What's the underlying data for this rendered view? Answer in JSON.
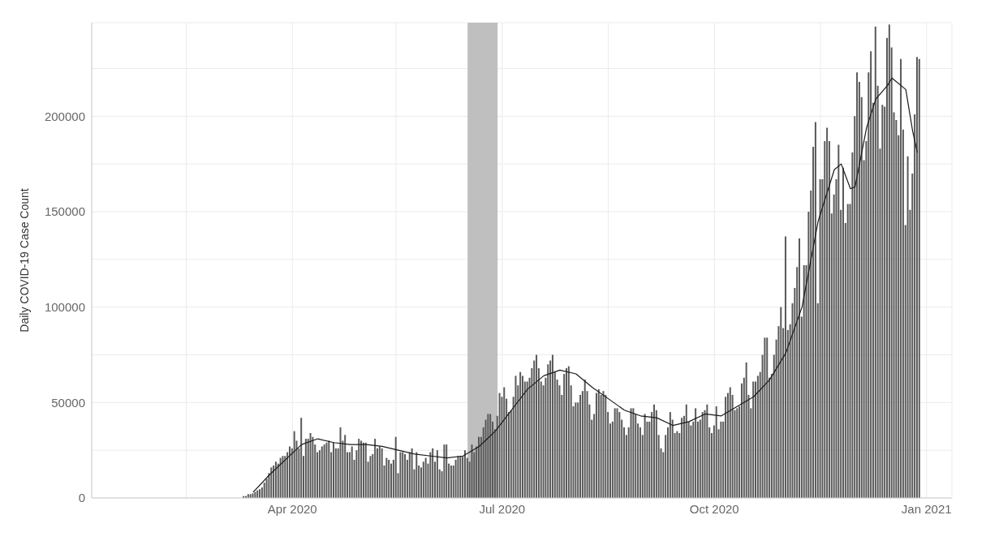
{
  "chart_data": {
    "type": "bar",
    "ylabel": "Daily COVID-19 Case Count",
    "xlim": [
      "2020-01-05",
      "2021-01-12"
    ],
    "xticks": [
      {
        "value": "2020-02-15",
        "label": null
      },
      {
        "value": "2020-04-01",
        "label": "Apr 2020"
      },
      {
        "value": "2020-05-16",
        "label": null
      },
      {
        "value": "2020-07-01",
        "label": "Jul 2020"
      },
      {
        "value": "2020-08-16",
        "label": null
      },
      {
        "value": "2020-10-01",
        "label": "Oct 2020"
      },
      {
        "value": "2020-11-16",
        "label": null
      },
      {
        "value": "2021-01-01",
        "label": "Jan 2021"
      }
    ],
    "ylim": [
      0,
      249000
    ],
    "yticks": [
      0,
      {
        "value": 25000,
        "label": null
      },
      50000,
      {
        "value": 75000,
        "label": null
      },
      100000,
      {
        "value": 125000,
        "label": null
      },
      150000,
      {
        "value": 175000,
        "label": null
      },
      200000,
      {
        "value": 225000,
        "label": null
      }
    ],
    "grid": true,
    "bands": [
      {
        "axis": "x",
        "from": "2020-06-16",
        "to": "2020-06-29",
        "color": "#bfbfbf"
      }
    ],
    "series": [
      {
        "color": "#595959",
        "x": [
          "2020-03-11",
          "2020-03-12",
          "2020-03-13",
          "2020-03-14",
          "2020-03-15",
          "2020-03-16",
          "2020-03-17",
          "2020-03-18",
          "2020-03-19",
          "2020-03-20",
          "2020-03-21",
          "2020-03-22",
          "2020-03-23",
          "2020-03-24",
          "2020-03-25",
          "2020-03-26",
          "2020-03-27",
          "2020-03-28",
          "2020-03-29",
          "2020-03-30",
          "2020-03-31",
          "2020-04-01",
          "2020-04-02",
          "2020-04-03",
          "2020-04-04",
          "2020-04-05",
          "2020-04-06",
          "2020-04-07",
          "2020-04-08",
          "2020-04-09",
          "2020-04-10",
          "2020-04-11",
          "2020-04-12",
          "2020-04-13",
          "2020-04-14",
          "2020-04-15",
          "2020-04-16",
          "2020-04-17",
          "2020-04-18",
          "2020-04-19",
          "2020-04-20",
          "2020-04-21",
          "2020-04-22",
          "2020-04-23",
          "2020-04-24",
          "2020-04-25",
          "2020-04-26",
          "2020-04-27",
          "2020-04-28",
          "2020-04-29",
          "2020-04-30",
          "2020-05-01",
          "2020-05-02",
          "2020-05-03",
          "2020-05-04",
          "2020-05-05",
          "2020-05-06",
          "2020-05-07",
          "2020-05-08",
          "2020-05-09",
          "2020-05-10",
          "2020-05-11",
          "2020-05-12",
          "2020-05-13",
          "2020-05-14",
          "2020-05-15",
          "2020-05-16",
          "2020-05-17",
          "2020-05-18",
          "2020-05-19",
          "2020-05-20",
          "2020-05-21",
          "2020-05-22",
          "2020-05-23",
          "2020-05-24",
          "2020-05-25",
          "2020-05-26",
          "2020-05-27",
          "2020-05-28",
          "2020-05-29",
          "2020-05-30",
          "2020-05-31",
          "2020-06-01",
          "2020-06-02",
          "2020-06-03",
          "2020-06-04",
          "2020-06-05",
          "2020-06-06",
          "2020-06-07",
          "2020-06-08",
          "2020-06-09",
          "2020-06-10",
          "2020-06-11",
          "2020-06-12",
          "2020-06-13",
          "2020-06-14",
          "2020-06-15",
          "2020-06-16",
          "2020-06-17",
          "2020-06-18",
          "2020-06-19",
          "2020-06-20",
          "2020-06-21",
          "2020-06-22",
          "2020-06-23",
          "2020-06-24",
          "2020-06-25",
          "2020-06-26",
          "2020-06-27",
          "2020-06-28",
          "2020-06-29",
          "2020-06-30",
          "2020-07-01",
          "2020-07-02",
          "2020-07-03",
          "2020-07-04",
          "2020-07-05",
          "2020-07-06",
          "2020-07-07",
          "2020-07-08",
          "2020-07-09",
          "2020-07-10",
          "2020-07-11",
          "2020-07-12",
          "2020-07-13",
          "2020-07-14",
          "2020-07-15",
          "2020-07-16",
          "2020-07-17",
          "2020-07-18",
          "2020-07-19",
          "2020-07-20",
          "2020-07-21",
          "2020-07-22",
          "2020-07-23",
          "2020-07-24",
          "2020-07-25",
          "2020-07-26",
          "2020-07-27",
          "2020-07-28",
          "2020-07-29",
          "2020-07-30",
          "2020-07-31",
          "2020-08-01",
          "2020-08-02",
          "2020-08-03",
          "2020-08-04",
          "2020-08-05",
          "2020-08-06",
          "2020-08-07",
          "2020-08-08",
          "2020-08-09",
          "2020-08-10",
          "2020-08-11",
          "2020-08-12",
          "2020-08-13",
          "2020-08-14",
          "2020-08-15",
          "2020-08-16",
          "2020-08-17",
          "2020-08-18",
          "2020-08-19",
          "2020-08-20",
          "2020-08-21",
          "2020-08-22",
          "2020-08-23",
          "2020-08-24",
          "2020-08-25",
          "2020-08-26",
          "2020-08-27",
          "2020-08-28",
          "2020-08-29",
          "2020-08-30",
          "2020-08-31",
          "2020-09-01",
          "2020-09-02",
          "2020-09-03",
          "2020-09-04",
          "2020-09-05",
          "2020-09-06",
          "2020-09-07",
          "2020-09-08",
          "2020-09-09",
          "2020-09-10",
          "2020-09-11",
          "2020-09-12",
          "2020-09-13",
          "2020-09-14",
          "2020-09-15",
          "2020-09-16",
          "2020-09-17",
          "2020-09-18",
          "2020-09-19",
          "2020-09-20",
          "2020-09-21",
          "2020-09-22",
          "2020-09-23",
          "2020-09-24",
          "2020-09-25",
          "2020-09-26",
          "2020-09-27",
          "2020-09-28",
          "2020-09-29",
          "2020-09-30",
          "2020-10-01",
          "2020-10-02",
          "2020-10-03",
          "2020-10-04",
          "2020-10-05",
          "2020-10-06",
          "2020-10-07",
          "2020-10-08",
          "2020-10-09",
          "2020-10-10",
          "2020-10-11",
          "2020-10-12",
          "2020-10-13",
          "2020-10-14",
          "2020-10-15",
          "2020-10-16",
          "2020-10-17",
          "2020-10-18",
          "2020-10-19",
          "2020-10-20",
          "2020-10-21",
          "2020-10-22",
          "2020-10-23",
          "2020-10-24",
          "2020-10-25",
          "2020-10-26",
          "2020-10-27",
          "2020-10-28",
          "2020-10-29",
          "2020-10-30",
          "2020-10-31",
          "2020-11-01",
          "2020-11-02",
          "2020-11-03",
          "2020-11-04",
          "2020-11-05",
          "2020-11-06",
          "2020-11-07",
          "2020-11-08",
          "2020-11-09",
          "2020-11-10",
          "2020-11-11",
          "2020-11-12",
          "2020-11-13",
          "2020-11-14",
          "2020-11-15",
          "2020-11-16",
          "2020-11-17",
          "2020-11-18",
          "2020-11-19",
          "2020-11-20",
          "2020-11-21",
          "2020-11-22",
          "2020-11-23",
          "2020-11-24",
          "2020-11-25",
          "2020-11-26",
          "2020-11-27",
          "2020-11-28",
          "2020-11-29",
          "2020-11-30",
          "2020-12-01",
          "2020-12-02",
          "2020-12-03",
          "2020-12-04",
          "2020-12-05",
          "2020-12-06",
          "2020-12-07",
          "2020-12-08",
          "2020-12-09",
          "2020-12-10",
          "2020-12-11",
          "2020-12-12",
          "2020-12-13",
          "2020-12-14",
          "2020-12-15",
          "2020-12-16",
          "2020-12-17",
          "2020-12-18",
          "2020-12-19",
          "2020-12-20",
          "2020-12-21",
          "2020-12-22",
          "2020-12-23",
          "2020-12-24",
          "2020-12-25",
          "2020-12-26",
          "2020-12-27",
          "2020-12-28",
          "2020-12-29"
        ],
        "values": [
          1000,
          1000,
          2000,
          2000,
          2400,
          3200,
          4000,
          4600,
          5500,
          8000,
          10000,
          13000,
          16000,
          17000,
          19000,
          18000,
          21000,
          22000,
          22000,
          24000,
          27000,
          26000,
          35000,
          30000,
          26000,
          42000,
          22000,
          31000,
          31000,
          34000,
          32000,
          28000,
          24000,
          25000,
          27000,
          28000,
          29000,
          30000,
          24000,
          29000,
          26000,
          26000,
          37000,
          30000,
          33000,
          24000,
          24000,
          27000,
          20000,
          25000,
          31000,
          30000,
          29000,
          29000,
          19000,
          22000,
          23000,
          31000,
          26000,
          27000,
          26000,
          17000,
          21000,
          20000,
          18000,
          20000,
          32000,
          13000,
          24000,
          24000,
          23000,
          20000,
          24000,
          26000,
          15000,
          24000,
          17000,
          16000,
          19000,
          21000,
          18000,
          24000,
          26000,
          19000,
          25000,
          15000,
          14000,
          28000,
          28000,
          18000,
          17000,
          17000,
          20000,
          22000,
          22000,
          22000,
          25000,
          21000,
          19000,
          28000,
          24000,
          27000,
          32000,
          32000,
          37000,
          41000,
          44000,
          44000,
          40000,
          36000,
          43000,
          55000,
          53000,
          58000,
          52000,
          45000,
          46000,
          53000,
          64000,
          59000,
          66000,
          64000,
          61000,
          61000,
          63000,
          68000,
          72000,
          75000,
          68000,
          61000,
          59000,
          63000,
          70000,
          72000,
          75000,
          66000,
          62000,
          59000,
          54000,
          65000,
          68000,
          69000,
          59000,
          48000,
          50000,
          50000,
          54000,
          56000,
          62000,
          56000,
          49000,
          41000,
          44000,
          55000,
          57000,
          54000,
          56000,
          54000,
          45000,
          39000,
          40000,
          47000,
          47000,
          45000,
          41000,
          37000,
          33000,
          37000,
          47000,
          47000,
          44000,
          39000,
          37000,
          33000,
          44000,
          40000,
          40000,
          45000,
          49000,
          46000,
          33000,
          26000,
          24000,
          33000,
          37000,
          45000,
          41000,
          34000,
          35000,
          34000,
          42000,
          43000,
          49000,
          40000,
          38000,
          40000,
          47000,
          40000,
          41000,
          45000,
          46000,
          49000,
          37000,
          34000,
          38000,
          48000,
          36000,
          40000,
          40000,
          53000,
          55000,
          58000,
          54000,
          46000,
          47000,
          48000,
          60000,
          63000,
          71000,
          54000,
          47000,
          61000,
          61000,
          64000,
          66000,
          75000,
          84000,
          84000,
          63000,
          65000,
          75000,
          83000,
          90000,
          100000,
          89000,
          137000,
          88000,
          91000,
          102000,
          110000,
          121000,
          136000,
          95000,
          122000,
          122000,
          150000,
          161000,
          184000,
          197000,
          102000,
          167000,
          167000,
          187000,
          194000,
          187000,
          149000,
          159000,
          167000,
          185000,
          151000,
          173000,
          144000,
          154000,
          154000,
          181000,
          200000,
          223000,
          218000,
          210000,
          177000,
          187000,
          223000,
          234000,
          207000,
          247000,
          216000,
          183000,
          206000,
          205000,
          241000,
          248000,
          236000,
          202000,
          198000,
          190000,
          230000,
          193000,
          143000,
          179000,
          151000,
          170000,
          201000,
          231000,
          230000
        ]
      },
      {
        "type": "line",
        "color": "#1a1a1a",
        "x": [
          "2020-03-15",
          "2020-03-22",
          "2020-03-29",
          "2020-04-05",
          "2020-04-12",
          "2020-04-19",
          "2020-04-26",
          "2020-05-03",
          "2020-05-10",
          "2020-05-17",
          "2020-05-24",
          "2020-05-31",
          "2020-06-07",
          "2020-06-14",
          "2020-06-21",
          "2020-06-28",
          "2020-07-05",
          "2020-07-12",
          "2020-07-19",
          "2020-07-26",
          "2020-08-02",
          "2020-08-09",
          "2020-08-16",
          "2020-08-23",
          "2020-08-30",
          "2020-09-06",
          "2020-09-13",
          "2020-09-20",
          "2020-09-27",
          "2020-10-04",
          "2020-10-11",
          "2020-10-18",
          "2020-10-25",
          "2020-11-01",
          "2020-11-08",
          "2020-11-15",
          "2020-11-22",
          "2020-11-25",
          "2020-11-29",
          "2020-12-01",
          "2020-12-06",
          "2020-12-10",
          "2020-12-15",
          "2020-12-17",
          "2020-12-23",
          "2020-12-26",
          "2020-12-28"
        ],
        "values": [
          3000,
          12000,
          20000,
          28000,
          31000,
          29000,
          28000,
          28000,
          27000,
          25000,
          23000,
          22000,
          21000,
          22000,
          27000,
          35000,
          46000,
          57000,
          64000,
          67000,
          65000,
          58000,
          52000,
          46000,
          43000,
          42000,
          38000,
          40000,
          44000,
          43000,
          48000,
          53000,
          62000,
          76000,
          100000,
          145000,
          172000,
          175000,
          162000,
          163000,
          194000,
          209000,
          216000,
          220000,
          214000,
          192000,
          181000
        ]
      }
    ]
  }
}
